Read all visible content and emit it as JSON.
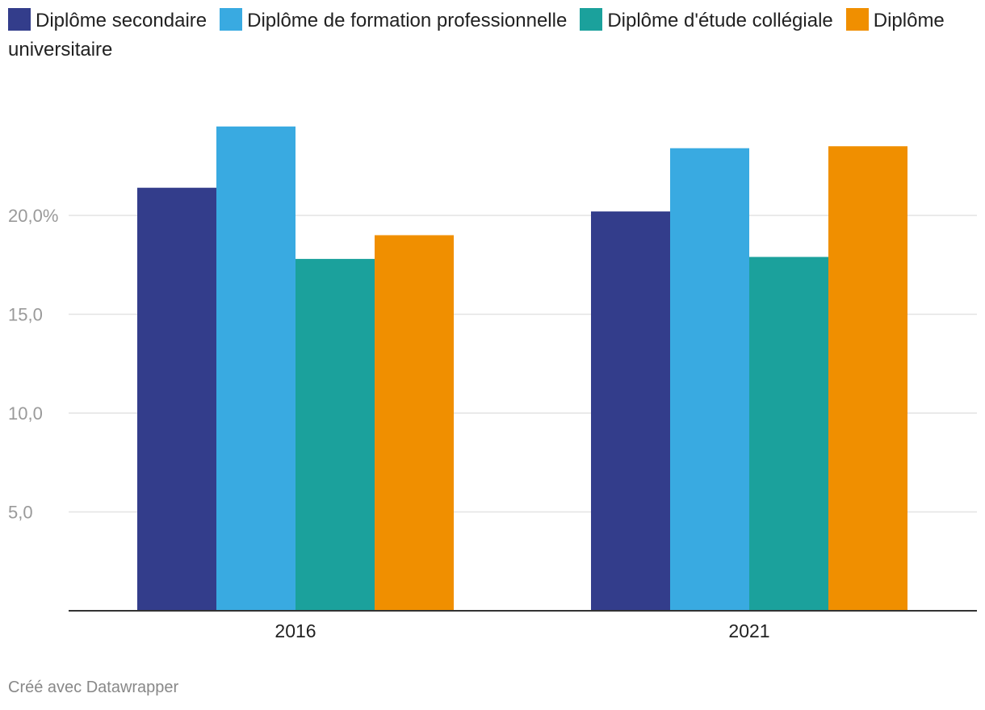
{
  "chart_data": {
    "type": "bar",
    "categories": [
      "2016",
      "2021"
    ],
    "series": [
      {
        "name": "Diplôme secondaire",
        "color": "#333d8b",
        "values": [
          21.4,
          20.2
        ]
      },
      {
        "name": "Diplôme de formation professionnelle",
        "color": "#39aae1",
        "values": [
          24.5,
          23.4
        ]
      },
      {
        "name": "Diplôme d'étude collégiale",
        "color": "#1ba19c",
        "values": [
          17.8,
          17.9
        ]
      },
      {
        "name": "Diplôme universitaire",
        "color": "#f08f00",
        "values": [
          19.0,
          23.5
        ]
      }
    ],
    "yticks": [
      {
        "value": 5,
        "label": "5,0"
      },
      {
        "value": 10,
        "label": "10,0"
      },
      {
        "value": 15,
        "label": "15,0"
      },
      {
        "value": 20,
        "label": "20,0%"
      }
    ],
    "ylim": [
      0,
      25
    ],
    "grid": true,
    "legend_position": "top",
    "title": "",
    "xlabel": "",
    "ylabel": ""
  },
  "footer": {
    "credit": "Créé avec Datawrapper"
  }
}
